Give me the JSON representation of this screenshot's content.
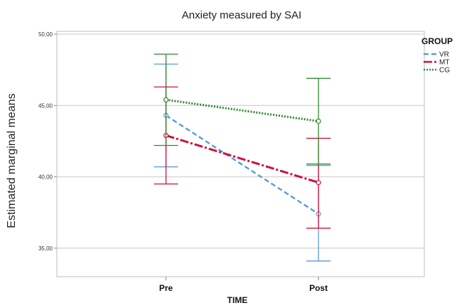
{
  "chart_data": {
    "type": "line",
    "title": "Anxiety measured by SAI",
    "xlabel": "TIME",
    "ylabel": "Estimated marginal means",
    "categories": [
      "Pre",
      "Post"
    ],
    "ylim": [
      33,
      50.2
    ],
    "yticks": [
      35,
      40,
      45,
      50
    ],
    "ytick_labels": [
      "35,00",
      "40,00",
      "45,00",
      "50,00"
    ],
    "grid": true,
    "legend": {
      "title": "GROUP",
      "placement": "right"
    },
    "series": [
      {
        "name": "VR",
        "values": [
          44.3,
          37.4
        ],
        "ci_low": [
          40.7,
          34.1
        ],
        "ci_high": [
          47.9,
          40.8
        ],
        "color": "#5b9bd5",
        "dash": "7,4",
        "width": 2.4
      },
      {
        "name": "MT",
        "values": [
          42.9,
          39.6
        ],
        "ci_low": [
          39.5,
          36.4
        ],
        "ci_high": [
          46.3,
          42.7
        ],
        "color": "#d0103a",
        "dash": "12,3,3,3",
        "width": 3
      },
      {
        "name": "CG",
        "values": [
          45.4,
          43.9
        ],
        "ci_low": [
          42.2,
          40.9
        ],
        "ci_high": [
          48.6,
          46.9
        ],
        "color": "#2e8b2e",
        "dash": "2,2",
        "width": 3
      }
    ]
  }
}
